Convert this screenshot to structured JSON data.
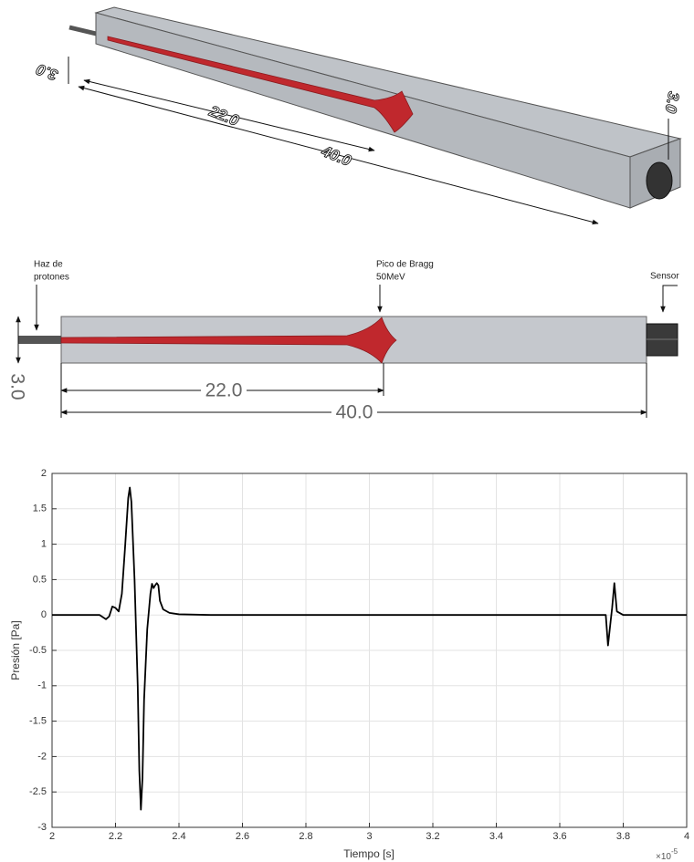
{
  "diagram_3d": {
    "dimensions": [
      "3.0",
      "22.0",
      "40.0",
      "3.0"
    ]
  },
  "diagram_2d": {
    "labels": {
      "beam": [
        "Haz de",
        "protones"
      ],
      "bragg_peak": [
        "Pico de Bragg",
        "50MeV"
      ],
      "sensor": "Sensor"
    },
    "dimensions": {
      "height": "3.0",
      "bragg_depth": "22.0",
      "length": "40.0"
    }
  },
  "chart_data": {
    "type": "line",
    "xlabel": "Tiempo [s]",
    "ylabel": "Presión [Pa]",
    "x_multiplier": {
      "base": "×10",
      "exponent": "-5"
    },
    "x": [
      2.0,
      2.1,
      2.15,
      2.17,
      2.18,
      2.19,
      2.2,
      2.21,
      2.22,
      2.23,
      2.24,
      2.245,
      2.25,
      2.26,
      2.27,
      2.275,
      2.28,
      2.285,
      2.29,
      2.3,
      2.31,
      2.315,
      2.32,
      2.325,
      2.33,
      2.335,
      2.34,
      2.35,
      2.37,
      2.4,
      2.5,
      3.7,
      3.745,
      3.752,
      3.76,
      3.765,
      3.772,
      3.78,
      3.8,
      4.0
    ],
    "values": [
      0,
      0,
      0,
      -0.06,
      -0.02,
      0.12,
      0.1,
      0.05,
      0.3,
      0.95,
      1.65,
      1.8,
      1.6,
      0.5,
      -1.0,
      -2.2,
      -2.75,
      -2.3,
      -1.2,
      -0.2,
      0.3,
      0.44,
      0.38,
      0.42,
      0.45,
      0.42,
      0.2,
      0.08,
      0.03,
      0.01,
      0,
      0,
      0,
      -0.43,
      -0.1,
      0.1,
      0.45,
      0.05,
      0,
      0
    ],
    "color": "#000000",
    "xlim": [
      2,
      4
    ],
    "xticks": [
      2,
      2.2,
      2.4,
      2.6,
      2.8,
      3,
      3.2,
      3.4,
      3.6,
      3.8,
      4
    ],
    "ylim": [
      -3,
      2
    ],
    "yticks": [
      -3,
      -2.5,
      -2,
      -1.5,
      -1,
      -0.5,
      0,
      0.5,
      1,
      1.5,
      2
    ],
    "grid": true
  }
}
